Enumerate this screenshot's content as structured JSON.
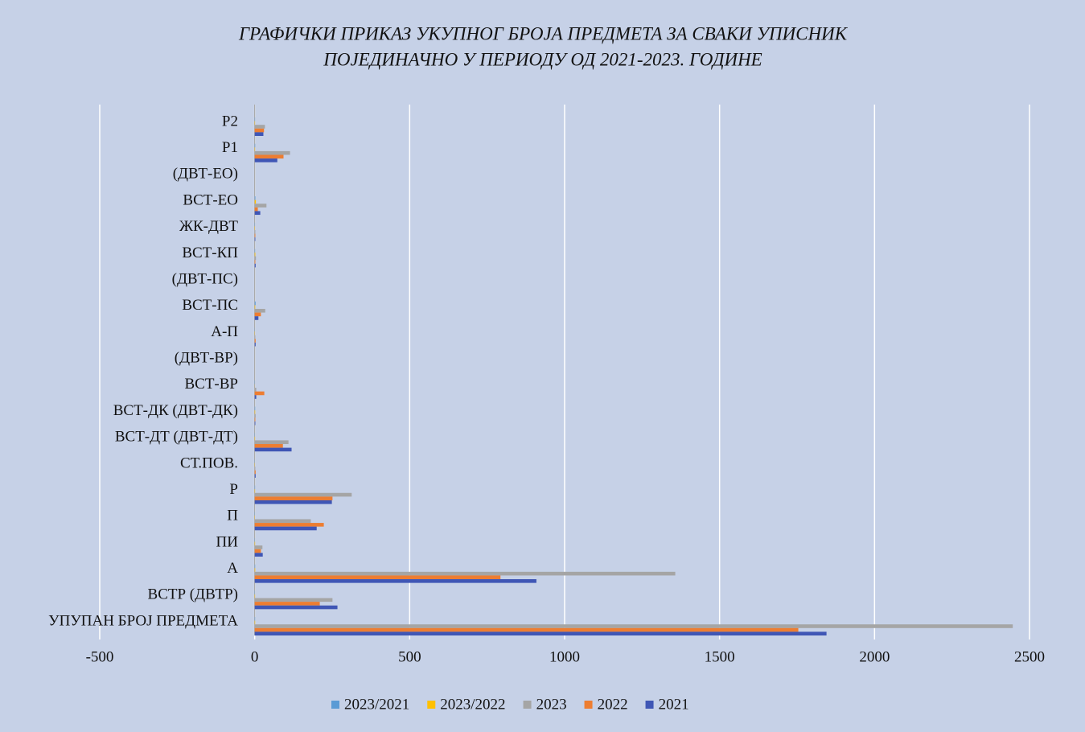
{
  "chart_data": {
    "type": "bar",
    "orientation": "horizontal",
    "title": [
      "ГРАФИЧКИ ПРИКАЗ УКУПНОГ БРОЈА ПРЕДМЕТА ЗА СВАКИ УПИСНИК",
      "ПОЈЕДИНАЧНО У ПЕРИОДУ ОД 2021-2023. ГОДИНЕ"
    ],
    "categories": [
      "УПУПАН БРОЈ ПРЕДМЕТА",
      "ВСТР (ДВТР)",
      "А",
      "ПИ",
      "П",
      "Р",
      "СТ.ПОВ.",
      "ВСТ-ДТ (ДВТ-ДТ)",
      "ВСТ-ДК (ДВТ-ДК)",
      "ВСТ-ВР",
      "(ДВТ-ВР)",
      "А-П",
      "ВСТ-ПС",
      "(ДВТ-ПС)",
      "ВСТ-КП",
      "ЖК-ДВТ",
      "ВСТ-ЕО",
      "(ДВТ-ЕО)",
      "Р1",
      "Р2"
    ],
    "series": [
      {
        "name": "2023/2021",
        "color": "#5b9bd5",
        "values": [
          1.33,
          0.94,
          1.49,
          0.96,
          0.9,
          1.26,
          0.67,
          0.92,
          1.5,
          1,
          null,
          0.67,
          2.83,
          null,
          1.33,
          1,
          2.11,
          null,
          1.56,
          1.18
        ]
      },
      {
        "name": "2023/2022",
        "color": "#ffc000",
        "values": [
          1.39,
          1.2,
          1.71,
          1.25,
          0.81,
          1.25,
          0.67,
          1.2,
          1.5,
          0.16,
          null,
          0.67,
          1.7,
          null,
          2,
          1,
          3.8,
          null,
          1.23,
          1.1
        ]
      },
      {
        "name": "2023",
        "color": "#a5a5a5",
        "values": [
          2446,
          251,
          1357,
          25,
          181,
          313,
          2,
          109,
          3,
          5,
          0,
          2,
          34,
          0,
          4,
          2,
          38,
          0,
          114,
          33
        ]
      },
      {
        "name": "2022",
        "color": "#ed7d31",
        "values": [
          1754,
          210,
          793,
          20,
          223,
          251,
          3,
          91,
          2,
          31,
          0,
          3,
          20,
          0,
          2,
          2,
          10,
          0,
          93,
          30
        ]
      },
      {
        "name": "2021",
        "color": "#3f56b5",
        "values": [
          1845,
          267,
          909,
          26,
          200,
          249,
          3,
          119,
          2,
          5,
          0,
          3,
          12,
          0,
          3,
          2,
          18,
          0,
          73,
          28
        ]
      }
    ],
    "xlim": [
      -500,
      2500
    ],
    "xticks": [
      -500,
      0,
      500,
      1000,
      1500,
      2000,
      2500
    ],
    "grid": true,
    "legend": "bottom"
  }
}
